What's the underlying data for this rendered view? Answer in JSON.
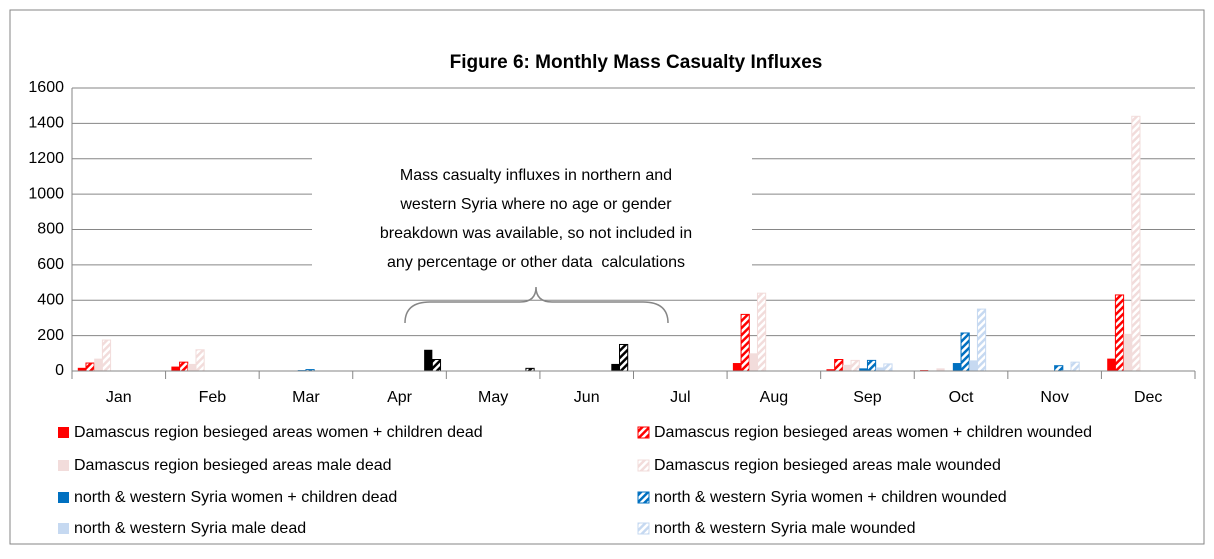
{
  "chart_data": {
    "type": "bar",
    "title": "Figure 6: Monthly Mass Casualty Influxes",
    "annotation": [
      "Mass casualty influxes in northern and",
      "western Syria where no age or gender",
      "breakdown was available, so not included in",
      "any percentage or other data  calculations"
    ],
    "categories": [
      "Jan",
      "Feb",
      "Mar",
      "Apr",
      "May",
      "Jun",
      "Jul",
      "Aug",
      "Sep",
      "Oct",
      "Nov",
      "Dec"
    ],
    "series": [
      {
        "name": "Damascus region besieged areas women + children dead",
        "color": "#ff0000",
        "hatched": false,
        "values": [
          18,
          25,
          0,
          0,
          0,
          0,
          0,
          45,
          10,
          5,
          0,
          70
        ]
      },
      {
        "name": "Damascus region besieged areas women + children wounded",
        "color": "#ff0000",
        "hatched": true,
        "values": [
          45,
          50,
          0,
          0,
          0,
          0,
          0,
          320,
          65,
          0,
          0,
          430
        ]
      },
      {
        "name": "Damascus region besieged areas male dead",
        "color": "#f2dcdb",
        "hatched": false,
        "values": [
          70,
          40,
          0,
          0,
          0,
          0,
          0,
          100,
          35,
          15,
          0,
          210
        ]
      },
      {
        "name": "Damascus region besieged areas male wounded",
        "color": "#f2dcdb",
        "hatched": true,
        "values": [
          175,
          120,
          0,
          0,
          0,
          0,
          0,
          440,
          60,
          0,
          0,
          1440
        ]
      },
      {
        "name": "north & western Syria women + children dead",
        "color": "#0070c0",
        "hatched": false,
        "values": [
          0,
          0,
          5,
          0,
          0,
          0,
          0,
          0,
          15,
          45,
          0,
          0
        ]
      },
      {
        "name": "north & western Syria women + children wounded",
        "color": "#0070c0",
        "hatched": true,
        "values": [
          0,
          0,
          8,
          0,
          0,
          0,
          0,
          0,
          60,
          215,
          30,
          0
        ]
      },
      {
        "name": "north & western Syria male dead",
        "color": "#c6d9f1",
        "hatched": false,
        "values": [
          0,
          0,
          0,
          0,
          0,
          0,
          0,
          0,
          20,
          60,
          5,
          0
        ]
      },
      {
        "name": "north & western Syria male wounded",
        "color": "#c6d9f1",
        "hatched": true,
        "values": [
          0,
          0,
          0,
          0,
          0,
          0,
          0,
          0,
          40,
          350,
          50,
          0
        ]
      },
      {
        "color": "#000000",
        "hatched": false,
        "values": [
          0,
          0,
          0,
          120,
          0,
          40,
          0,
          0,
          0,
          0,
          0,
          0
        ]
      },
      {
        "color": "#000000",
        "hatched": true,
        "values": [
          0,
          0,
          0,
          65,
          15,
          150,
          0,
          0,
          0,
          0,
          0,
          0
        ]
      }
    ],
    "ylim": [
      0,
      1600
    ],
    "yticks": [
      0,
      200,
      400,
      600,
      800,
      1000,
      1200,
      1400,
      1600
    ],
    "grid": true
  }
}
